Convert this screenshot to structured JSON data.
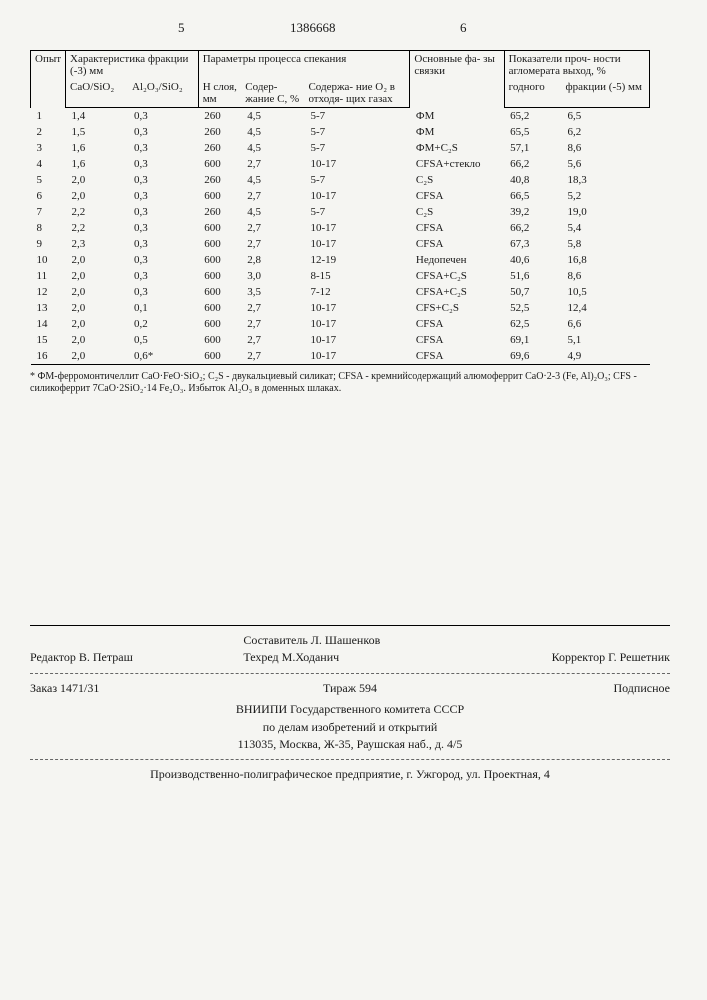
{
  "header": {
    "l": "5",
    "c": "1386668",
    "r": "6"
  },
  "tableHead": {
    "r1": [
      "Опыт",
      "Характеристика фракции\n(-3) мм",
      null,
      "Параметры процесса спекания",
      null,
      null,
      "Основные фа-\nзы   связки",
      "Показатели проч-\nности агломерата\nвыход, %"
    ],
    "r1span": [
      1,
      2,
      null,
      3,
      null,
      null,
      1,
      2
    ],
    "r2": [
      null,
      "CaO/SiO₂",
      "Al₂O₃/SiO₂",
      "H слоя,\nмм",
      "Содер-\nжание\nC, %",
      "Содержа-\nние O₂\nв отходя-\nщих газах",
      null,
      "годного",
      "фракции\n(-5) мм"
    ]
  },
  "rows": [
    [
      "1",
      "1,4",
      "0,3",
      "260",
      "4,5",
      "5-7",
      "ФМ",
      "65,2",
      "6,5"
    ],
    [
      "2",
      "1,5",
      "0,3",
      "260",
      "4,5",
      "5-7",
      "ФМ",
      "65,5",
      "6,2"
    ],
    [
      "3",
      "1,6",
      "0,3",
      "260",
      "4,5",
      "5-7",
      "ФМ+C₂S",
      "57,1",
      "8,6"
    ],
    [
      "4",
      "1,6",
      "0,3",
      "600",
      "2,7",
      "10-17",
      "CFSA+стекло",
      "66,2",
      "5,6"
    ],
    [
      "5",
      "2,0",
      "0,3",
      "260",
      "4,5",
      "5-7",
      "C₂S",
      "40,8",
      "18,3"
    ],
    [
      "6",
      "2,0",
      "0,3",
      "600",
      "2,7",
      "10-17",
      "CFSA",
      "66,5",
      "5,2"
    ],
    [
      "7",
      "2,2",
      "0,3",
      "260",
      "4,5",
      "5-7",
      "C₂S",
      "39,2",
      "19,0"
    ],
    [
      "8",
      "2,2",
      "0,3",
      "600",
      "2,7",
      "10-17",
      "CFSA",
      "66,2",
      "5,4"
    ],
    [
      "9",
      "2,3",
      "0,3",
      "600",
      "2,7",
      "10-17",
      "CFSA",
      "67,3",
      "5,8"
    ],
    [
      "10",
      "2,0",
      "0,3",
      "600",
      "2,8",
      "12-19",
      "Недопечен",
      "40,6",
      "16,8"
    ],
    [
      "11",
      "2,0",
      "0,3",
      "600",
      "3,0",
      "8-15",
      "CFSA+C₂S",
      "51,6",
      "8,6"
    ],
    [
      "12",
      "2,0",
      "0,3",
      "600",
      "3,5",
      "7-12",
      "CFSA+C₂S",
      "50,7",
      "10,5"
    ],
    [
      "13",
      "2,0",
      "0,1",
      "600",
      "2,7",
      "10-17",
      "CFS+C₂S",
      "52,5",
      "12,4"
    ],
    [
      "14",
      "2,0",
      "0,2",
      "600",
      "2,7",
      "10-17",
      "CFSA",
      "62,5",
      "6,6"
    ],
    [
      "15",
      "2,0",
      "0,5",
      "600",
      "2,7",
      "10-17",
      "CFSA",
      "69,1",
      "5,1"
    ],
    [
      "16",
      "2,0",
      "0,6*",
      "600",
      "2,7",
      "10-17",
      "CFSA",
      "69,6",
      "4,9"
    ]
  ],
  "footnote": "* ФМ-ферромонтичеллит CaO·FeO·SiO₂; C₂S - двукальциевый силикат; CFSA - кремнийсодержащий алюмоферрит CaO·2-3 (Fe, Al)₂O₃; CFS - силикоферрит 7CaO·2SiO₂·14 Fe₂O₃. Избыток Al₂O₃ в доменных шлаках.",
  "colophon": {
    "row1_l": "Редактор В. Петраш",
    "row1_c": "Составитель Л. Шашенков\nТехред М.Ходанич",
    "row1_r": "Корректор Г. Решетник",
    "row2_l": "Заказ 1471/31",
    "row2_c": "Тираж 594",
    "row2_r": "Подписное",
    "org": "ВНИИПИ Государственного комитета СССР\nпо делам изобретений и открытий\n113035, Москва, Ж-35, Раушская наб., д. 4/5",
    "printer": "Производственно-полиграфическое предприятие, г. Ужгород, ул. Проектная, 4"
  }
}
